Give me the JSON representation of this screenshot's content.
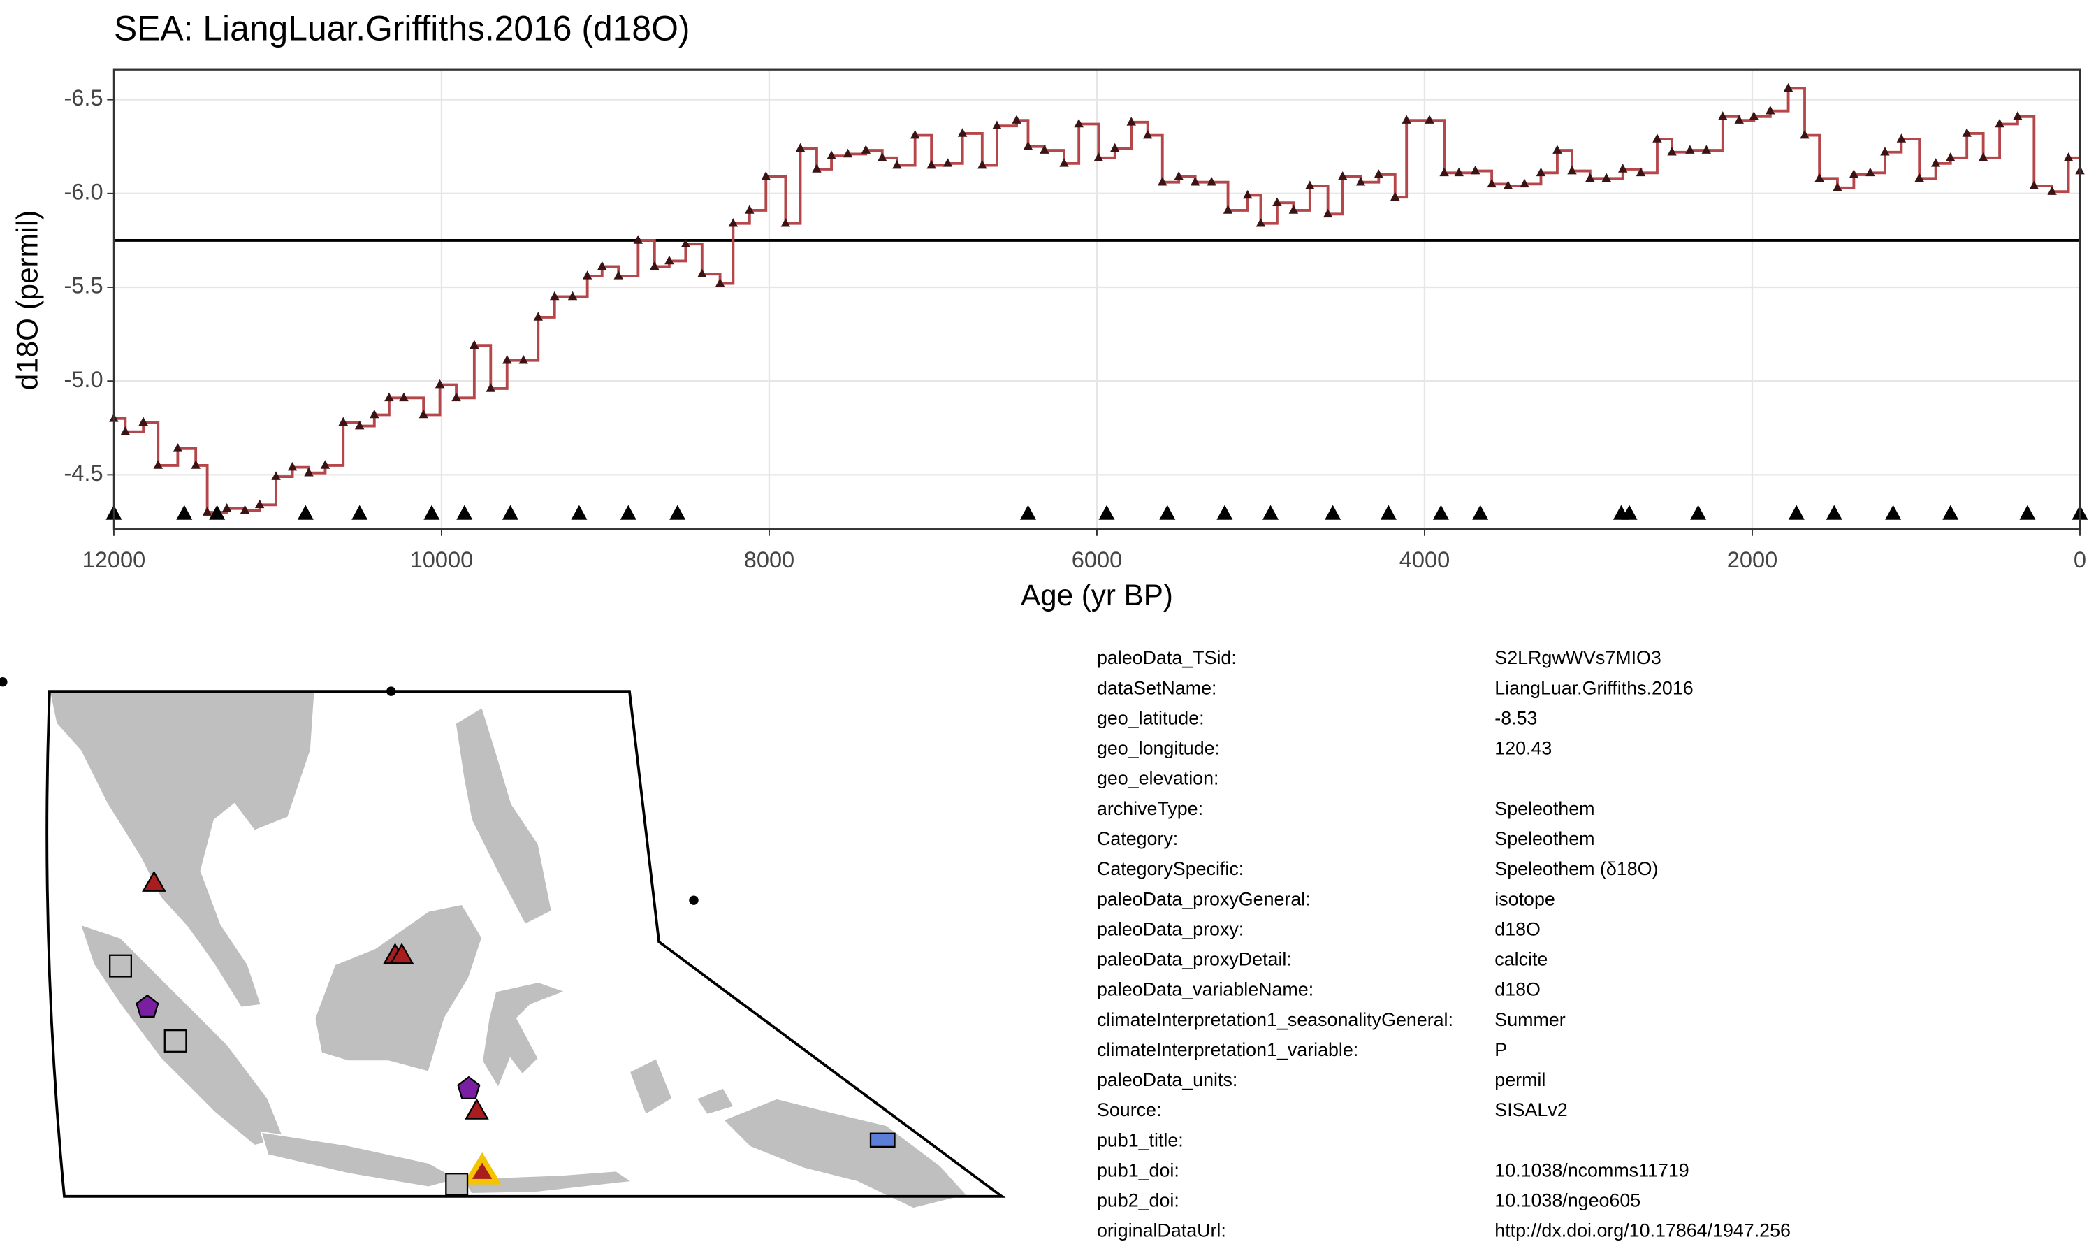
{
  "chart_data": {
    "type": "line",
    "title": "SEA: LiangLuar.Griffiths.2016 (d18O)",
    "x_label": "Age (yr BP)",
    "y_label": "d18O (permil)",
    "x": [
      12000,
      11930,
      11820,
      11730,
      11610,
      11500,
      11430,
      11310,
      11200,
      11110,
      11010,
      10910,
      10810,
      10710,
      10600,
      10500,
      10410,
      10320,
      10230,
      10110,
      10010,
      9910,
      9800,
      9700,
      9600,
      9500,
      9410,
      9310,
      9200,
      9110,
      9020,
      8920,
      8800,
      8700,
      8610,
      8510,
      8410,
      8300,
      8220,
      8120,
      8020,
      7900,
      7810,
      7710,
      7620,
      7520,
      7410,
      7310,
      7220,
      7110,
      7010,
      6910,
      6820,
      6700,
      6610,
      6490,
      6420,
      6320,
      6200,
      6110,
      5990,
      5890,
      5790,
      5690,
      5600,
      5500,
      5400,
      5300,
      5200,
      5080,
      5000,
      4900,
      4800,
      4700,
      4590,
      4500,
      4390,
      4280,
      4180,
      4110,
      3970,
      3880,
      3790,
      3690,
      3590,
      3490,
      3390,
      3290,
      3190,
      3100,
      2990,
      2890,
      2790,
      2680,
      2580,
      2490,
      2380,
      2280,
      2180,
      2080,
      1990,
      1890,
      1780,
      1680,
      1590,
      1480,
      1380,
      1280,
      1190,
      1090,
      980,
      880,
      790,
      690,
      590,
      490,
      380,
      280,
      170,
      70,
      0
    ],
    "values": [
      -4.8,
      -4.73,
      -4.78,
      -4.55,
      -4.64,
      -4.55,
      -4.3,
      -4.32,
      -4.31,
      -4.34,
      -4.49,
      -4.54,
      -4.51,
      -4.55,
      -4.78,
      -4.76,
      -4.82,
      -4.91,
      -4.91,
      -4.82,
      -4.98,
      -4.91,
      -5.19,
      -4.96,
      -5.11,
      -5.11,
      -5.34,
      -5.45,
      -5.45,
      -5.56,
      -5.61,
      -5.56,
      -5.75,
      -5.61,
      -5.64,
      -5.73,
      -5.57,
      -5.52,
      -5.84,
      -5.91,
      -6.09,
      -5.84,
      -6.24,
      -6.13,
      -6.2,
      -6.21,
      -6.23,
      -6.19,
      -6.15,
      -6.31,
      -6.15,
      -6.16,
      -6.32,
      -6.15,
      -6.36,
      -6.39,
      -6.25,
      -6.23,
      -6.16,
      -6.37,
      -6.19,
      -6.24,
      -6.38,
      -6.31,
      -6.06,
      -6.09,
      -6.06,
      -6.06,
      -5.91,
      -5.99,
      -5.84,
      -5.95,
      -5.91,
      -6.04,
      -5.89,
      -6.09,
      -6.06,
      -6.1,
      -5.98,
      -6.39,
      -6.39,
      -6.11,
      -6.11,
      -6.12,
      -6.05,
      -6.04,
      -6.05,
      -6.11,
      -6.23,
      -6.12,
      -6.08,
      -6.08,
      -6.13,
      -6.11,
      -6.29,
      -6.22,
      -6.23,
      -6.23,
      -6.41,
      -6.39,
      -6.41,
      -6.44,
      -6.56,
      -6.31,
      -6.08,
      -6.03,
      -6.1,
      -6.11,
      -6.22,
      -6.29,
      -6.08,
      -6.16,
      -6.19,
      -6.32,
      -6.19,
      -6.37,
      -6.41,
      -6.04,
      -6.01,
      -6.19,
      -6.12
    ],
    "color": "#b5474b",
    "marker_color": "#3a1414",
    "mean_line": -5.75,
    "age_control_points": [
      12000,
      11570,
      11370,
      10830,
      10500,
      10060,
      9860,
      9580,
      9160,
      8860,
      8560,
      6420,
      5940,
      5570,
      5220,
      4940,
      4560,
      4220,
      3900,
      3660,
      2800,
      2750,
      2330,
      1730,
      1500,
      1140,
      790,
      320,
      0
    ],
    "xlim": [
      12000,
      0
    ],
    "ylim": [
      -4.21,
      -6.66
    ],
    "xticks": [
      12000,
      10000,
      8000,
      6000,
      4000,
      2000,
      0
    ],
    "yticks": [
      -6.5,
      {
        "value": -6,
        "label": "-6.0"
      },
      -5.5,
      {
        "value": -5,
        "label": "-5.0"
      },
      -4.5
    ],
    "grid": true
  },
  "metadata": [
    {
      "key": "paleoData_TSid:",
      "value": "S2LRgwWVs7MIO3"
    },
    {
      "key": "dataSetName:",
      "value": "LiangLuar.Griffiths.2016"
    },
    {
      "key": "geo_latitude:",
      "value": "-8.53"
    },
    {
      "key": "geo_longitude:",
      "value": "120.43"
    },
    {
      "key": "geo_elevation:",
      "value": null
    },
    {
      "key": "archiveType:",
      "value": "Speleothem"
    },
    {
      "key": "Category:",
      "value": "Speleothem"
    },
    {
      "key": "CategorySpecific:",
      "value": "Speleothem (δ18O)"
    },
    {
      "key": "paleoData_proxyGeneral:",
      "value": "isotope"
    },
    {
      "key": "paleoData_proxy:",
      "value": "d18O"
    },
    {
      "key": "paleoData_proxyDetail:",
      "value": "calcite"
    },
    {
      "key": "paleoData_variableName:",
      "value": "d18O"
    },
    {
      "key": "climateInterpretation1_seasonalityGeneral:",
      "value": "Summer"
    },
    {
      "key": "climateInterpretation1_variable:",
      "value": "P"
    },
    {
      "key": "paleoData_units:",
      "value": "permil"
    },
    {
      "key": "Source:",
      "value": "SISALv2"
    },
    {
      "key": "pub1_title:",
      "value": null
    },
    {
      "key": "pub1_doi:",
      "value": "10.1038/ncomms11719"
    },
    {
      "key": "pub2_doi:",
      "value": "10.1038/ngeo605"
    },
    {
      "key": "originalDataUrl:",
      "value": "http://dx.doi.org/10.17864/1947.256"
    }
  ]
}
